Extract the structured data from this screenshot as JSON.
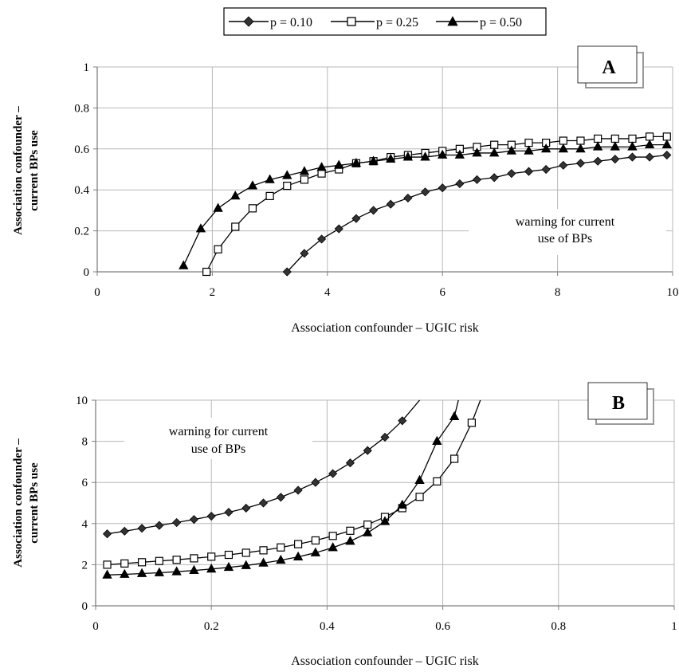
{
  "legend": {
    "entries": [
      {
        "label": "p = 0.10",
        "marker": "diamond"
      },
      {
        "label": "p = 0.25",
        "marker": "square-open"
      },
      {
        "label": "p = 0.50",
        "marker": "triangle"
      }
    ]
  },
  "colors": {
    "line": "#000000",
    "diamond": "#333333",
    "grid": "#b8b8b8",
    "axis": "#7f7f7f",
    "shadow": "#9a9a9a"
  },
  "chart_data": [
    {
      "type": "line",
      "panel_label": "A",
      "xlabel": "Association confounder – UGIC risk",
      "ylabel_lines": [
        "Association confounder –",
        "current BPs use"
      ],
      "xlim": [
        0,
        10
      ],
      "ylim": [
        0,
        1
      ],
      "xticks": [
        0,
        2,
        4,
        6,
        8,
        10
      ],
      "yticks": [
        0,
        0.2,
        0.4,
        0.6,
        0.8,
        1
      ],
      "xtick_labels": [
        "0",
        "2",
        "4",
        "6",
        "8",
        "10"
      ],
      "ytick_labels": [
        "0",
        "0.2",
        "0.4",
        "0.6",
        "0.8",
        "1"
      ],
      "grid": true,
      "annotation": [
        "warning for current",
        "use of BPs"
      ],
      "series": [
        {
          "name": "p = 0.10",
          "marker": "diamond",
          "x": [
            3.3,
            3.6,
            3.9,
            4.2,
            4.5,
            4.8,
            5.1,
            5.4,
            5.7,
            6.0,
            6.3,
            6.6,
            6.9,
            7.2,
            7.5,
            7.8,
            8.1,
            8.4,
            8.7,
            9.0,
            9.3,
            9.6,
            9.9
          ],
          "y": [
            0.0,
            0.09,
            0.16,
            0.21,
            0.26,
            0.3,
            0.33,
            0.36,
            0.39,
            0.41,
            0.43,
            0.45,
            0.46,
            0.48,
            0.49,
            0.5,
            0.52,
            0.53,
            0.54,
            0.55,
            0.56,
            0.56,
            0.57
          ]
        },
        {
          "name": "p = 0.25",
          "marker": "square-open",
          "x": [
            1.9,
            2.1,
            2.4,
            2.7,
            3.0,
            3.3,
            3.6,
            3.9,
            4.2,
            4.5,
            4.8,
            5.1,
            5.4,
            5.7,
            6.0,
            6.3,
            6.6,
            6.9,
            7.2,
            7.5,
            7.8,
            8.1,
            8.4,
            8.7,
            9.0,
            9.3,
            9.6,
            9.9
          ],
          "y": [
            0.0,
            0.11,
            0.22,
            0.31,
            0.37,
            0.42,
            0.45,
            0.48,
            0.5,
            0.53,
            0.54,
            0.56,
            0.57,
            0.58,
            0.59,
            0.6,
            0.61,
            0.62,
            0.62,
            0.63,
            0.63,
            0.64,
            0.64,
            0.65,
            0.65,
            0.65,
            0.66,
            0.66
          ]
        },
        {
          "name": "p = 0.50",
          "marker": "triangle",
          "x": [
            1.5,
            1.8,
            2.1,
            2.4,
            2.7,
            3.0,
            3.3,
            3.6,
            3.9,
            4.2,
            4.5,
            4.8,
            5.1,
            5.4,
            5.7,
            6.0,
            6.3,
            6.6,
            6.9,
            7.2,
            7.5,
            7.8,
            8.1,
            8.4,
            8.7,
            9.0,
            9.3,
            9.6,
            9.9
          ],
          "y": [
            0.03,
            0.21,
            0.31,
            0.37,
            0.42,
            0.45,
            0.47,
            0.49,
            0.51,
            0.52,
            0.53,
            0.54,
            0.55,
            0.56,
            0.56,
            0.57,
            0.57,
            0.58,
            0.58,
            0.59,
            0.59,
            0.6,
            0.6,
            0.6,
            0.61,
            0.61,
            0.61,
            0.62,
            0.62
          ]
        }
      ]
    },
    {
      "type": "line",
      "panel_label": "B",
      "xlabel": "Association confounder – UGIC risk",
      "ylabel_lines": [
        "Association confounder –",
        "current BPs use"
      ],
      "xlim": [
        0,
        1
      ],
      "ylim": [
        0,
        10
      ],
      "xticks": [
        0,
        0.2,
        0.4,
        0.6,
        0.8,
        1
      ],
      "yticks": [
        0,
        2,
        4,
        6,
        8,
        10
      ],
      "xtick_labels": [
        "0",
        "0.2",
        "0.4",
        "0.6",
        "0.8",
        "1"
      ],
      "ytick_labels": [
        "0",
        "2",
        "4",
        "6",
        "8",
        "10"
      ],
      "grid": true,
      "annotation": [
        "warning for current",
        "use of BPs"
      ],
      "series": [
        {
          "name": "p = 0.10",
          "marker": "diamond",
          "x": [
            0.02,
            0.05,
            0.08,
            0.11,
            0.14,
            0.17,
            0.2,
            0.23,
            0.26,
            0.29,
            0.32,
            0.35,
            0.38,
            0.41,
            0.44,
            0.47,
            0.5,
            0.53,
            0.56
          ],
          "y": [
            3.5,
            3.63,
            3.77,
            3.91,
            4.05,
            4.2,
            4.36,
            4.55,
            4.75,
            5.0,
            5.28,
            5.62,
            6.0,
            6.43,
            6.95,
            7.55,
            8.2,
            9.0,
            10.0
          ],
          "markers_until_index": 17
        },
        {
          "name": "p = 0.25",
          "marker": "square-open",
          "x": [
            0.02,
            0.05,
            0.08,
            0.11,
            0.14,
            0.17,
            0.2,
            0.23,
            0.26,
            0.29,
            0.32,
            0.35,
            0.38,
            0.41,
            0.44,
            0.47,
            0.5,
            0.53,
            0.56,
            0.59,
            0.62,
            0.65,
            0.665
          ],
          "y": [
            2.0,
            2.06,
            2.12,
            2.18,
            2.24,
            2.31,
            2.39,
            2.48,
            2.58,
            2.7,
            2.84,
            3.0,
            3.18,
            3.4,
            3.65,
            3.95,
            4.32,
            4.75,
            5.3,
            6.05,
            7.15,
            8.9,
            10.0
          ],
          "markers_until_index": 21
        },
        {
          "name": "p = 0.50",
          "marker": "triangle",
          "x": [
            0.02,
            0.05,
            0.08,
            0.11,
            0.14,
            0.17,
            0.2,
            0.23,
            0.26,
            0.29,
            0.32,
            0.35,
            0.38,
            0.41,
            0.44,
            0.47,
            0.5,
            0.53,
            0.56,
            0.59,
            0.62,
            0.627
          ],
          "y": [
            1.5,
            1.53,
            1.57,
            1.61,
            1.66,
            1.72,
            1.79,
            1.87,
            1.96,
            2.08,
            2.22,
            2.38,
            2.58,
            2.83,
            3.14,
            3.55,
            4.1,
            4.9,
            6.1,
            8.0,
            9.2,
            10.0
          ],
          "markers_until_index": 20
        }
      ]
    }
  ]
}
